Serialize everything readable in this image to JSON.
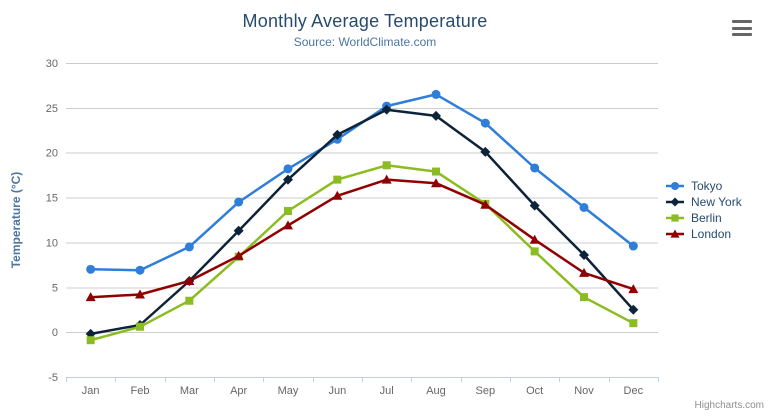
{
  "chart_data": {
    "type": "line",
    "title": "Monthly Average Temperature",
    "subtitle": "Source: WorldClimate.com",
    "xlabel": "",
    "ylabel": "Temperature (°C)",
    "ylim": [
      -5,
      30
    ],
    "y_ticks": [
      -5,
      0,
      5,
      10,
      15,
      20,
      25,
      30
    ],
    "grid": true,
    "legend_position": "right",
    "categories": [
      "Jan",
      "Feb",
      "Mar",
      "Apr",
      "May",
      "Jun",
      "Jul",
      "Aug",
      "Sep",
      "Oct",
      "Nov",
      "Dec"
    ],
    "series": [
      {
        "name": "Tokyo",
        "color": "#2f7ed8",
        "marker": "circle",
        "values": [
          7.0,
          6.9,
          9.5,
          14.5,
          18.2,
          21.5,
          25.2,
          26.5,
          23.3,
          18.3,
          13.9,
          9.6
        ]
      },
      {
        "name": "New York",
        "color": "#0d233a",
        "marker": "diamond",
        "values": [
          -0.2,
          0.8,
          5.7,
          11.3,
          17.0,
          22.0,
          24.8,
          24.1,
          20.1,
          14.1,
          8.6,
          2.5
        ]
      },
      {
        "name": "Berlin",
        "color": "#8bbc21",
        "marker": "square",
        "values": [
          -0.9,
          0.6,
          3.5,
          8.4,
          13.5,
          17.0,
          18.6,
          17.9,
          14.3,
          9.0,
          3.9,
          1.0
        ]
      },
      {
        "name": "London",
        "color": "#910000",
        "marker": "triangle",
        "values": [
          3.9,
          4.2,
          5.7,
          8.5,
          11.9,
          15.2,
          17.0,
          16.6,
          14.2,
          10.3,
          6.6,
          4.8
        ]
      }
    ],
    "credits": "Highcharts.com"
  },
  "export_button": {
    "icon": "hamburger-menu-icon"
  },
  "colors": {
    "background": "#ffffff",
    "title_text": "#274b6d",
    "subtitle_text": "#4d759e",
    "axis_title_text": "#4d759e",
    "tick_label_text": "#666666",
    "grid_line": "#cccccc",
    "axis_line": "#c0d0e0",
    "legend_text": "#274b6d",
    "credits_text": "#909090",
    "menu_icon": "#666666"
  }
}
